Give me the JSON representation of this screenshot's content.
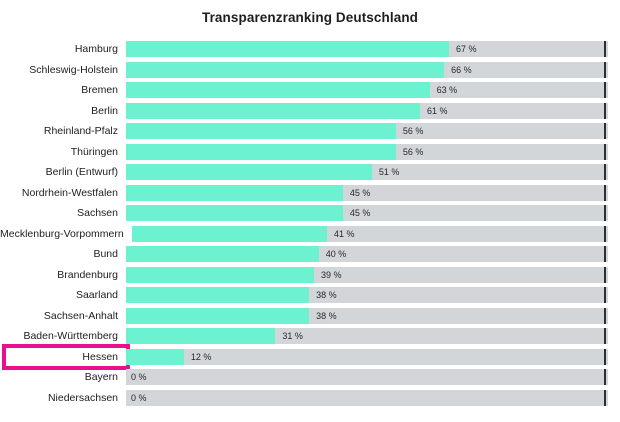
{
  "title": "Transparenzranking Deutschland",
  "colors": {
    "bar": "#6cf2d1",
    "track": "#d3d6d9",
    "tick": "#2c2f33",
    "highlight": "#e8108c",
    "text": "#1e1e1c"
  },
  "chart_data": {
    "type": "bar",
    "orientation": "horizontal",
    "title": "Transparenzranking Deutschland",
    "categories": [
      "Hamburg",
      "Schleswig-Holstein",
      "Bremen",
      "Berlin",
      "Rheinland-Pfalz",
      "Thüringen",
      "Berlin (Entwurf)",
      "Nordrhein-Westfalen",
      "Sachsen",
      "Mecklenburg-Vorpommern",
      "Bund",
      "Brandenburg",
      "Saarland",
      "Sachsen-Anhalt",
      "Baden-Württemberg",
      "Hessen",
      "Bayern",
      "Niedersachsen"
    ],
    "values": [
      67,
      66,
      63,
      61,
      56,
      56,
      51,
      45,
      45,
      41,
      40,
      39,
      38,
      38,
      31,
      12,
      0,
      0
    ],
    "value_labels": [
      "67 %",
      "66 %",
      "63 %",
      "61 %",
      "56 %",
      "56 %",
      "51 %",
      "45 %",
      "45 %",
      "41 %",
      "40 %",
      "39 %",
      "38 %",
      "38 %",
      "31 %",
      "12 %",
      "0 %",
      "0 %"
    ],
    "xlim": [
      0,
      100
    ],
    "xlabel": "",
    "ylabel": "",
    "grid": false,
    "legend": false,
    "highlighted_category": "Hessen",
    "end_tick_at": 100
  }
}
